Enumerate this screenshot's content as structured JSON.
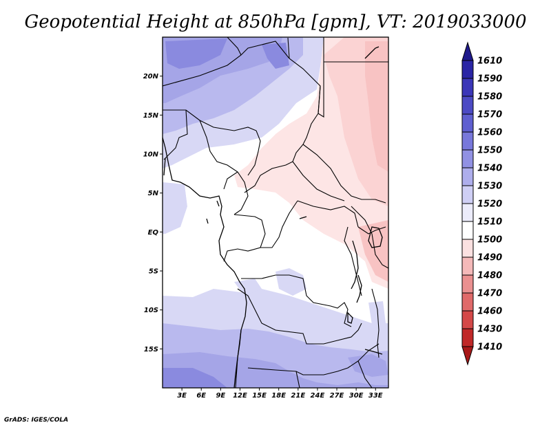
{
  "title": "Geopotential Height at 850hPa [gpm], VT: 2019033000",
  "credit": "GrADS: IGES/COLA",
  "map": {
    "lon_range": [
      0,
      35
    ],
    "lat_range": [
      -20,
      25
    ],
    "x_ticks": [
      "3E",
      "6E",
      "9E",
      "12E",
      "15E",
      "18E",
      "21E",
      "24E",
      "27E",
      "30E",
      "33E"
    ],
    "y_ticks": [
      "20N",
      "15N",
      "10N",
      "5N",
      "EQ",
      "5S",
      "10S",
      "15S"
    ]
  },
  "colorbar": {
    "labels": [
      "1610",
      "1590",
      "1580",
      "1570",
      "1560",
      "1550",
      "1540",
      "1530",
      "1520",
      "1510",
      "1500",
      "1490",
      "1480",
      "1470",
      "1460",
      "1430",
      "1410"
    ],
    "colors": [
      "#1f1a8c",
      "#2a25a5",
      "#3b36b8",
      "#4c4ac4",
      "#5f5fd0",
      "#7878db",
      "#9191e3",
      "#aeaeec",
      "#cfcff5",
      "#ececfb",
      "#ffffff",
      "#fbe1e1",
      "#f4b9b9",
      "#ea9090",
      "#e06a6a",
      "#d44848",
      "#c02828",
      "#a81818"
    ]
  }
}
